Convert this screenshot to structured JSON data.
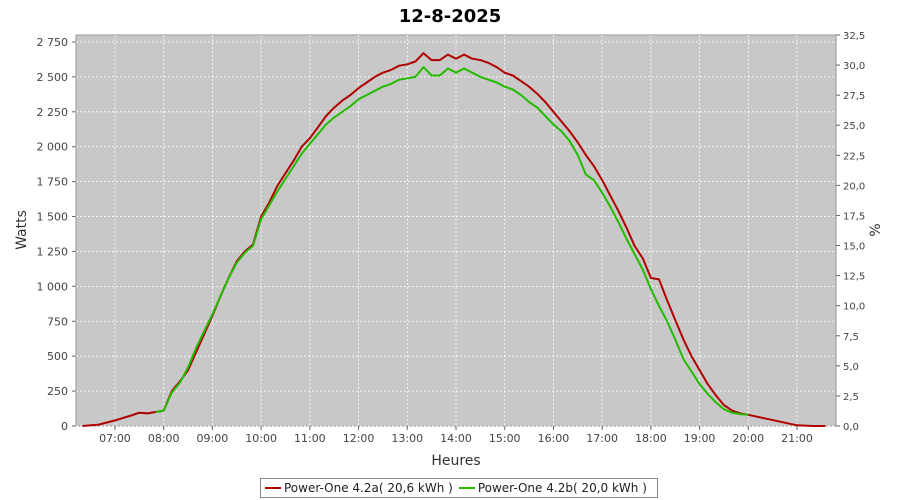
{
  "chart_data": {
    "type": "line",
    "title": "12-8-2025",
    "xlabel": "Heures",
    "ylabel": "Watts",
    "y2label": "%",
    "xlim": [
      "06:12",
      "21:48"
    ],
    "ylim": [
      0,
      2800
    ],
    "y2lim": [
      0,
      32.5
    ],
    "xticks": [
      "07:00",
      "08:00",
      "09:00",
      "10:00",
      "11:00",
      "12:00",
      "13:00",
      "14:00",
      "15:00",
      "16:00",
      "17:00",
      "18:00",
      "19:00",
      "20:00",
      "21:00"
    ],
    "yticks": [
      "0",
      "250",
      "500",
      "750",
      "1 000",
      "1 250",
      "1 500",
      "1 750",
      "2 000",
      "2 250",
      "2 500",
      "2 750"
    ],
    "y2ticks": [
      "0,0",
      "2,5",
      "5,0",
      "7,5",
      "10,0",
      "12,5",
      "15,0",
      "17,5",
      "20,0",
      "22,5",
      "25,0",
      "27,5",
      "30,0",
      "32,5"
    ],
    "grid": true,
    "legend_position": "bottom",
    "series": [
      {
        "name": "Power-One 4.2a( 20,6 kWh )",
        "color": "#b00000",
        "points": [
          [
            "06:20",
            0
          ],
          [
            "06:40",
            10
          ],
          [
            "07:00",
            40
          ],
          [
            "07:20",
            75
          ],
          [
            "07:30",
            95
          ],
          [
            "07:40",
            90
          ],
          [
            "07:50",
            100
          ],
          [
            "08:00",
            110
          ],
          [
            "08:10",
            250
          ],
          [
            "08:20",
            320
          ],
          [
            "08:30",
            400
          ],
          [
            "08:40",
            530
          ],
          [
            "08:50",
            660
          ],
          [
            "09:00",
            790
          ],
          [
            "09:10",
            930
          ],
          [
            "09:20",
            1060
          ],
          [
            "09:30",
            1180
          ],
          [
            "09:40",
            1250
          ],
          [
            "09:50",
            1300
          ],
          [
            "10:00",
            1500
          ],
          [
            "10:10",
            1600
          ],
          [
            "10:20",
            1720
          ],
          [
            "10:30",
            1810
          ],
          [
            "10:40",
            1900
          ],
          [
            "10:50",
            2000
          ],
          [
            "11:00",
            2060
          ],
          [
            "11:10",
            2140
          ],
          [
            "11:20",
            2220
          ],
          [
            "11:30",
            2280
          ],
          [
            "11:40",
            2330
          ],
          [
            "11:50",
            2370
          ],
          [
            "12:00",
            2420
          ],
          [
            "12:10",
            2460
          ],
          [
            "12:20",
            2500
          ],
          [
            "12:30",
            2530
          ],
          [
            "12:40",
            2550
          ],
          [
            "12:50",
            2580
          ],
          [
            "13:00",
            2590
          ],
          [
            "13:10",
            2610
          ],
          [
            "13:20",
            2670
          ],
          [
            "13:30",
            2620
          ],
          [
            "13:40",
            2620
          ],
          [
            "13:50",
            2660
          ],
          [
            "14:00",
            2630
          ],
          [
            "14:10",
            2660
          ],
          [
            "14:20",
            2630
          ],
          [
            "14:30",
            2620
          ],
          [
            "14:40",
            2600
          ],
          [
            "14:50",
            2570
          ],
          [
            "15:00",
            2530
          ],
          [
            "15:10",
            2510
          ],
          [
            "15:20",
            2470
          ],
          [
            "15:30",
            2430
          ],
          [
            "15:40",
            2380
          ],
          [
            "15:50",
            2320
          ],
          [
            "16:00",
            2250
          ],
          [
            "16:10",
            2180
          ],
          [
            "16:20",
            2110
          ],
          [
            "16:30",
            2030
          ],
          [
            "16:40",
            1940
          ],
          [
            "16:50",
            1860
          ],
          [
            "17:00",
            1760
          ],
          [
            "17:10",
            1650
          ],
          [
            "17:20",
            1540
          ],
          [
            "17:30",
            1420
          ],
          [
            "17:40",
            1290
          ],
          [
            "17:50",
            1200
          ],
          [
            "18:00",
            1060
          ],
          [
            "18:10",
            1050
          ],
          [
            "18:20",
            900
          ],
          [
            "18:30",
            760
          ],
          [
            "18:40",
            620
          ],
          [
            "18:50",
            500
          ],
          [
            "19:00",
            400
          ],
          [
            "19:10",
            300
          ],
          [
            "19:20",
            220
          ],
          [
            "19:30",
            150
          ],
          [
            "19:40",
            110
          ],
          [
            "19:50",
            90
          ],
          [
            "20:00",
            80
          ],
          [
            "20:20",
            55
          ],
          [
            "20:40",
            30
          ],
          [
            "21:00",
            5
          ],
          [
            "21:20",
            0
          ],
          [
            "21:35",
            0
          ]
        ]
      },
      {
        "name": "Power-One 4.2b( 20,0 kWh )",
        "color": "#22bb00",
        "points": [
          [
            "07:50",
            100
          ],
          [
            "08:00",
            110
          ],
          [
            "08:10",
            240
          ],
          [
            "08:20",
            310
          ],
          [
            "08:30",
            420
          ],
          [
            "08:40",
            560
          ],
          [
            "08:50",
            680
          ],
          [
            "09:00",
            800
          ],
          [
            "09:10",
            930
          ],
          [
            "09:20",
            1060
          ],
          [
            "09:30",
            1170
          ],
          [
            "09:40",
            1240
          ],
          [
            "09:50",
            1290
          ],
          [
            "10:00",
            1480
          ],
          [
            "10:10",
            1580
          ],
          [
            "10:20",
            1680
          ],
          [
            "10:30",
            1770
          ],
          [
            "10:40",
            1860
          ],
          [
            "10:50",
            1950
          ],
          [
            "11:00",
            2020
          ],
          [
            "11:10",
            2090
          ],
          [
            "11:20",
            2160
          ],
          [
            "11:30",
            2210
          ],
          [
            "11:40",
            2250
          ],
          [
            "11:50",
            2290
          ],
          [
            "12:00",
            2340
          ],
          [
            "12:10",
            2370
          ],
          [
            "12:20",
            2400
          ],
          [
            "12:30",
            2430
          ],
          [
            "12:40",
            2450
          ],
          [
            "12:50",
            2480
          ],
          [
            "13:00",
            2490
          ],
          [
            "13:10",
            2500
          ],
          [
            "13:20",
            2570
          ],
          [
            "13:30",
            2510
          ],
          [
            "13:40",
            2510
          ],
          [
            "13:50",
            2560
          ],
          [
            "14:00",
            2530
          ],
          [
            "14:10",
            2560
          ],
          [
            "14:20",
            2530
          ],
          [
            "14:30",
            2500
          ],
          [
            "14:40",
            2480
          ],
          [
            "14:50",
            2460
          ],
          [
            "15:00",
            2430
          ],
          [
            "15:10",
            2410
          ],
          [
            "15:20",
            2370
          ],
          [
            "15:30",
            2320
          ],
          [
            "15:40",
            2280
          ],
          [
            "15:50",
            2220
          ],
          [
            "16:00",
            2160
          ],
          [
            "16:10",
            2110
          ],
          [
            "16:20",
            2040
          ],
          [
            "16:30",
            1940
          ],
          [
            "16:40",
            1800
          ],
          [
            "16:50",
            1760
          ],
          [
            "17:00",
            1670
          ],
          [
            "17:10",
            1570
          ],
          [
            "17:20",
            1460
          ],
          [
            "17:30",
            1340
          ],
          [
            "17:40",
            1230
          ],
          [
            "17:50",
            1120
          ],
          [
            "18:00",
            980
          ],
          [
            "18:10",
            860
          ],
          [
            "18:20",
            750
          ],
          [
            "18:30",
            620
          ],
          [
            "18:40",
            480
          ],
          [
            "18:50",
            390
          ],
          [
            "19:00",
            300
          ],
          [
            "19:10",
            230
          ],
          [
            "19:20",
            170
          ],
          [
            "19:30",
            120
          ],
          [
            "19:40",
            95
          ],
          [
            "19:50",
            85
          ],
          [
            "20:00",
            80
          ]
        ]
      }
    ]
  }
}
